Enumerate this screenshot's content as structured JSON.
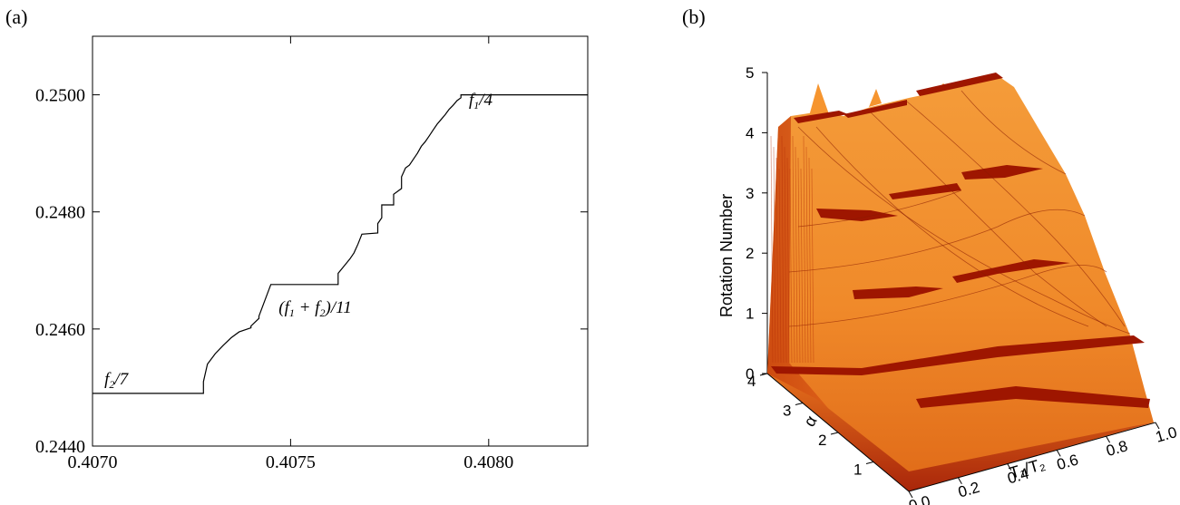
{
  "chart_data": [
    {
      "type": "line",
      "panel_label": "(a)",
      "xlim": [
        0.407,
        0.40825
      ],
      "ylim": [
        0.244,
        0.251
      ],
      "x_ticks": [
        {
          "value": 0.407,
          "label": "0.4070"
        },
        {
          "value": 0.4075,
          "label": "0.4075"
        },
        {
          "value": 0.408,
          "label": "0.4080"
        }
      ],
      "y_ticks": [
        {
          "value": 0.244,
          "label": "0.2440"
        },
        {
          "value": 0.246,
          "label": "0.2460"
        },
        {
          "value": 0.248,
          "label": "0.2480"
        },
        {
          "value": 0.25,
          "label": "0.2500"
        }
      ],
      "series": [
        {
          "x": [
            0.407,
            0.40728,
            0.40728,
            0.40729,
            0.40731,
            0.40733,
            0.40735,
            0.40737,
            0.4074,
            0.4074,
            0.40742,
            0.40742,
            0.40745,
            0.40745,
            0.40762,
            0.40762,
            0.40765,
            0.40766,
            0.40767,
            0.40768,
            0.40768,
            0.40772,
            0.40772,
            0.40773,
            0.40773,
            0.40776,
            0.40776,
            0.40778,
            0.40778,
            0.40779,
            0.4078,
            0.40781,
            0.40782,
            0.40783,
            0.40784,
            0.40785,
            0.40786,
            0.40787,
            0.40788,
            0.40789,
            0.4079,
            0.40791,
            0.40792,
            0.40793,
            0.40793,
            0.40825
          ],
          "y": [
            0.2449,
            0.2449,
            0.2451,
            0.2454,
            0.24558,
            0.24572,
            0.24585,
            0.24595,
            0.24602,
            0.24605,
            0.24618,
            0.24622,
            0.24676,
            0.24676,
            0.24676,
            0.24695,
            0.2472,
            0.2473,
            0.24745,
            0.24762,
            0.24762,
            0.24764,
            0.2478,
            0.2479,
            0.24812,
            0.24812,
            0.2483,
            0.2484,
            0.2486,
            0.24875,
            0.2488,
            0.2489,
            0.249,
            0.24912,
            0.2492,
            0.2493,
            0.2494,
            0.2495,
            0.24958,
            0.24966,
            0.24975,
            0.24982,
            0.2499,
            0.24995,
            0.25,
            0.25
          ]
        }
      ],
      "annotations": [
        {
          "main": "f",
          "sub": "2",
          "rest": "/7",
          "x": 0.40703,
          "y": 0.24505
        },
        {
          "main": "(f",
          "sub": "1",
          "mid": " + f",
          "sub2": "2",
          "rest": ")/11",
          "x": 0.40747,
          "y": 0.24628
        },
        {
          "main": "f",
          "sub": "1",
          "rest": "/4",
          "x": 0.40795,
          "y": 0.24982
        }
      ]
    },
    {
      "type": "surface",
      "panel_label": "(b)",
      "zlabel": "Rotation Number",
      "xlabel": "T₁/T₂",
      "ylabel": "α",
      "z_ticks": [
        "0",
        "1",
        "2",
        "3",
        "4",
        "5"
      ],
      "x_ticks": [
        "0.0",
        "0.2",
        "0.4",
        "0.6",
        "0.8",
        "1.0"
      ],
      "y_ticks": [
        "1",
        "2",
        "3",
        "4"
      ],
      "colors": {
        "dark": "#9e1600",
        "mid": "#d8500e",
        "light": "#f6952f",
        "highlight": "#fbb04a"
      }
    }
  ]
}
